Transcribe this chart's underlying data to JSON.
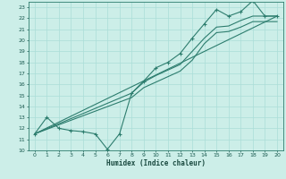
{
  "xlabel": "Humidex (Indice chaleur)",
  "bg_color": "#cceee8",
  "line_color": "#2d7d6e",
  "grid_color": "#aaddd8",
  "xlim": [
    -0.5,
    20.5
  ],
  "ylim": [
    10,
    23.5
  ],
  "xticks": [
    0,
    1,
    2,
    3,
    4,
    5,
    6,
    7,
    8,
    9,
    10,
    11,
    12,
    13,
    14,
    15,
    16,
    17,
    18,
    19,
    20
  ],
  "yticks": [
    10,
    11,
    12,
    13,
    14,
    15,
    16,
    17,
    18,
    19,
    20,
    21,
    22,
    23
  ],
  "line1_x": [
    0,
    1,
    2,
    3,
    4,
    5,
    6,
    7,
    8,
    9,
    10,
    11,
    12,
    13,
    14,
    15,
    16,
    17,
    18,
    19,
    20
  ],
  "line1_y": [
    11.5,
    13,
    12,
    11.8,
    11.7,
    11.5,
    10.1,
    11.5,
    15.2,
    16.3,
    17.5,
    18.0,
    18.8,
    20.2,
    21.5,
    22.8,
    22.2,
    22.6,
    23.6,
    22.2,
    22.2
  ],
  "line2_x": [
    0,
    8,
    9,
    10,
    11,
    12,
    13,
    14,
    15,
    16,
    17,
    18,
    19,
    20
  ],
  "line2_y": [
    11.5,
    15.2,
    16.2,
    16.8,
    17.3,
    17.8,
    19.0,
    20.2,
    21.2,
    21.3,
    21.8,
    22.2,
    22.2,
    22.2
  ],
  "line3_x": [
    0,
    8,
    9,
    10,
    11,
    12,
    13,
    14,
    15,
    16,
    17,
    18,
    19,
    20
  ],
  "line3_y": [
    11.5,
    14.8,
    15.7,
    16.2,
    16.7,
    17.2,
    18.2,
    19.7,
    20.7,
    20.8,
    21.2,
    21.7,
    21.7,
    21.7
  ],
  "line4_x": [
    0,
    20
  ],
  "line4_y": [
    11.5,
    22.2
  ]
}
